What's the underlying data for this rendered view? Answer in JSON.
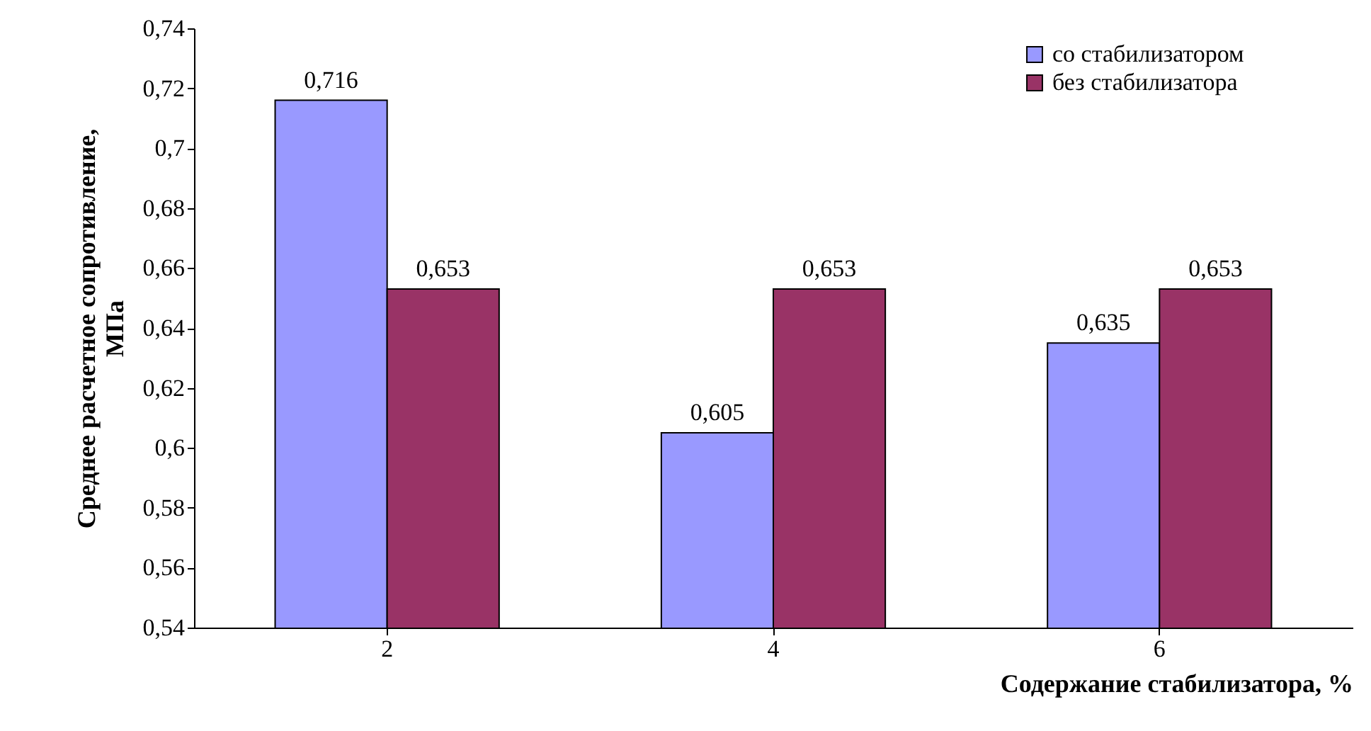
{
  "chart_data": {
    "type": "bar",
    "xlabel": "Содержание стабилизатора, %",
    "ylabel": "Среднее расчетное сопротивление,\nМПа",
    "categories": [
      "2",
      "4",
      "6"
    ],
    "series": [
      {
        "name": "со стабилизатором",
        "color": "#9999ff",
        "values": [
          0.716,
          0.605,
          0.635
        ],
        "value_labels": [
          "0,716",
          "0,605",
          "0,635"
        ]
      },
      {
        "name": "без стабилизатора",
        "color": "#993366",
        "values": [
          0.653,
          0.653,
          0.653
        ],
        "value_labels": [
          "0,653",
          "0,653",
          "0,653"
        ]
      }
    ],
    "ylim": [
      0.54,
      0.74
    ],
    "yticks": [
      {
        "value": 0.54,
        "label": "0,54"
      },
      {
        "value": 0.56,
        "label": "0,56"
      },
      {
        "value": 0.58,
        "label": "0,58"
      },
      {
        "value": 0.6,
        "label": "0,6"
      },
      {
        "value": 0.62,
        "label": "0,62"
      },
      {
        "value": 0.64,
        "label": "0,64"
      },
      {
        "value": 0.66,
        "label": "0,66"
      },
      {
        "value": 0.68,
        "label": "0,68"
      },
      {
        "value": 0.7,
        "label": "0,7"
      },
      {
        "value": 0.72,
        "label": "0,72"
      },
      {
        "value": 0.74,
        "label": "0,74"
      }
    ],
    "legend": "top right",
    "grid": false
  }
}
